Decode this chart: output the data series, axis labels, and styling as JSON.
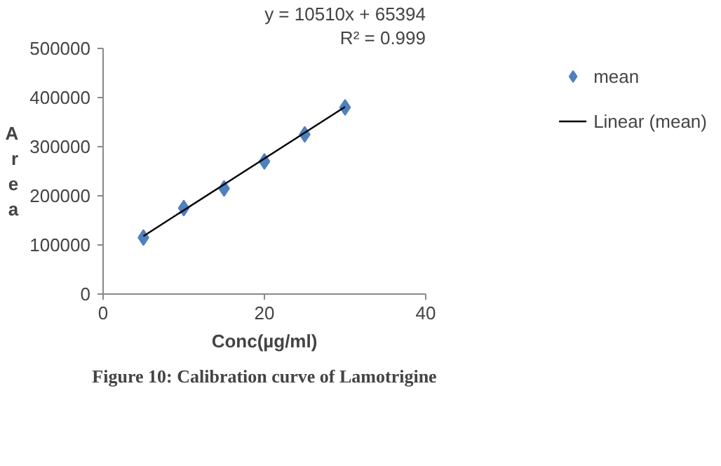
{
  "chart_data": {
    "type": "scatter",
    "ylabel": "Area",
    "xlabel": "Conc(µg/ml)",
    "xlim": [
      0,
      40
    ],
    "xticks": [
      0,
      20,
      40
    ],
    "ylim": [
      0,
      500000
    ],
    "yticks": [
      0,
      100000,
      200000,
      300000,
      400000,
      500000
    ],
    "grid": false,
    "legend": "right",
    "marker": "diamond",
    "annotations": [
      "y = 10510x + 65394",
      "R² = 0.999",
      "Figure 10: Calibration curve of Lamotrigine"
    ],
    "series": [
      {
        "name": "mean",
        "color": "#4f81bd",
        "x": [
          5,
          10,
          15,
          20,
          25,
          30
        ],
        "values": [
          115000,
          175000,
          215000,
          270000,
          325000,
          380000
        ]
      },
      {
        "name": "Linear (mean)",
        "type": "line",
        "marker": "none",
        "color": "#000000",
        "line_style": "solid",
        "x": [
          5,
          30
        ],
        "values": [
          118000,
          381000
        ]
      }
    ]
  }
}
